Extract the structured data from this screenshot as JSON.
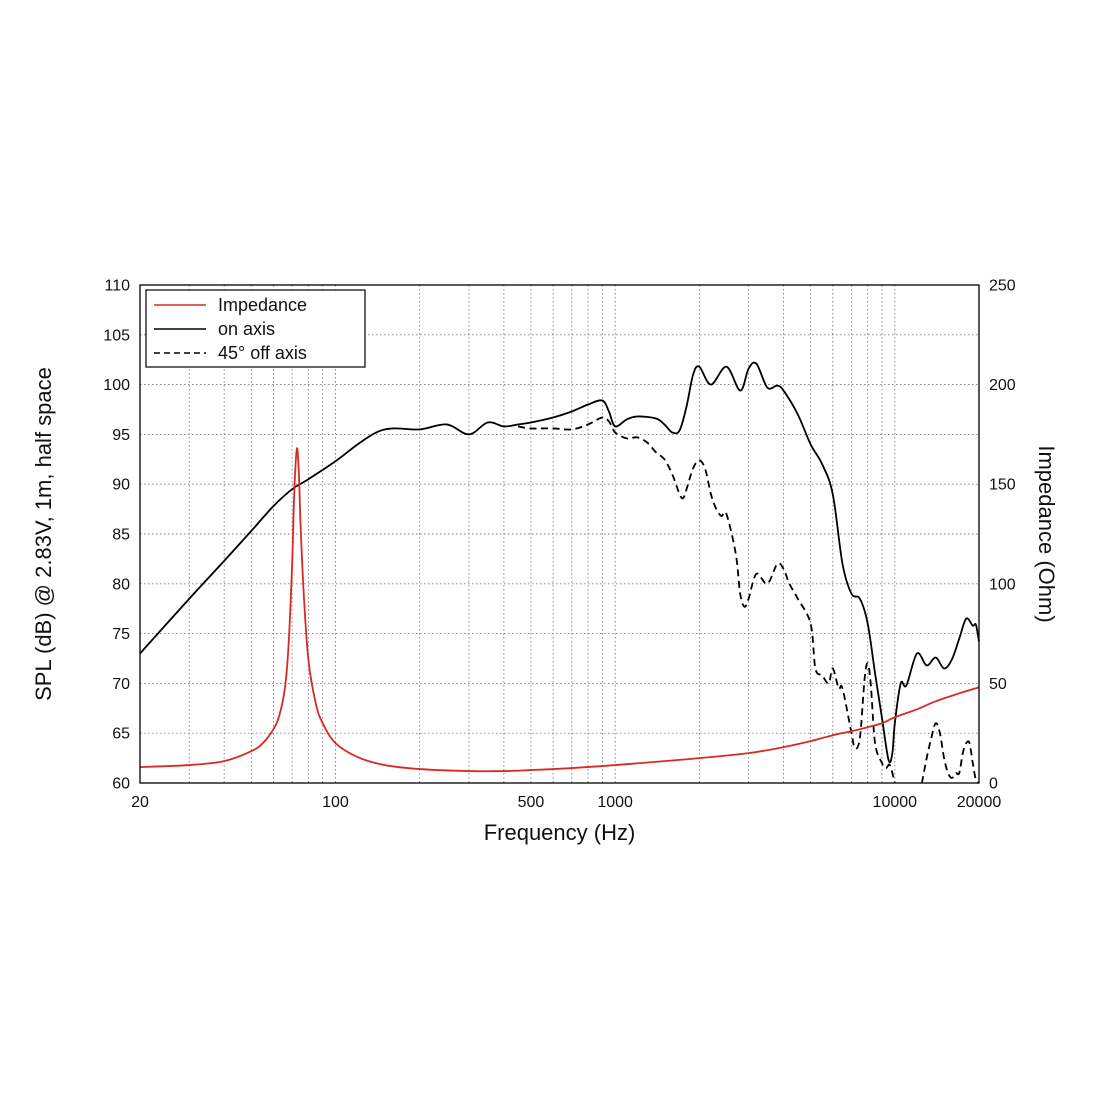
{
  "chart_data": {
    "type": "line",
    "xlabel": "Frequency (Hz)",
    "ylabel": "SPL (dB) @ 2.83V, 1m, half space",
    "y2label": "Impedance (Ohm)",
    "xscale": "log",
    "xlim": [
      20,
      20000
    ],
    "ylim": [
      60,
      110
    ],
    "y2lim": [
      0,
      250
    ],
    "grid": true,
    "legend_position": "top-left",
    "x_ticks": [
      20,
      100,
      500,
      1000,
      10000,
      20000
    ],
    "x_tick_labels": [
      "20",
      "100",
      "500",
      "1000",
      "10000",
      "20000"
    ],
    "y_ticks": [
      60,
      65,
      70,
      75,
      80,
      85,
      90,
      95,
      100,
      105,
      110
    ],
    "y_tick_labels": [
      "60",
      "65",
      "70",
      "75",
      "80",
      "85",
      "90",
      "95",
      "100",
      "105",
      "110"
    ],
    "y2_ticks": [
      0,
      50,
      100,
      150,
      200,
      250
    ],
    "y2_tick_labels": [
      "0",
      "50",
      "100",
      "150",
      "200",
      "250"
    ],
    "colors": {
      "impedance": "#d62b25",
      "on_axis": "#000000",
      "off_axis": "#000000"
    },
    "series": [
      {
        "name": "Impedance",
        "axis": "right",
        "color": "#d62b25",
        "dash": "solid",
        "points": [
          [
            20,
            8
          ],
          [
            30,
            9
          ],
          [
            40,
            11
          ],
          [
            50,
            16
          ],
          [
            55,
            20
          ],
          [
            60,
            27
          ],
          [
            63,
            34
          ],
          [
            66,
            48
          ],
          [
            68,
            70
          ],
          [
            70,
            110
          ],
          [
            71,
            140
          ],
          [
            72,
            160
          ],
          [
            73,
            168
          ],
          [
            74,
            155
          ],
          [
            75,
            130
          ],
          [
            77,
            95
          ],
          [
            80,
            62
          ],
          [
            85,
            40
          ],
          [
            90,
            30
          ],
          [
            100,
            20
          ],
          [
            120,
            13
          ],
          [
            150,
            9
          ],
          [
            200,
            7
          ],
          [
            300,
            6
          ],
          [
            400,
            6
          ],
          [
            500,
            6.5
          ],
          [
            700,
            7.5
          ],
          [
            1000,
            9
          ],
          [
            1500,
            11
          ],
          [
            2000,
            12.5
          ],
          [
            3000,
            15
          ],
          [
            4000,
            18
          ],
          [
            5000,
            21
          ],
          [
            6000,
            24
          ],
          [
            7000,
            26
          ],
          [
            8000,
            28
          ],
          [
            9000,
            30
          ],
          [
            10000,
            33
          ],
          [
            12000,
            37
          ],
          [
            14000,
            41
          ],
          [
            17000,
            45
          ],
          [
            20000,
            48
          ]
        ]
      },
      {
        "name": "on axis",
        "axis": "left",
        "color": "#000000",
        "dash": "solid",
        "points": [
          [
            20,
            73
          ],
          [
            30,
            78.5
          ],
          [
            40,
            82.3
          ],
          [
            50,
            85.3
          ],
          [
            60,
            87.8
          ],
          [
            70,
            89.5
          ],
          [
            80,
            90.5
          ],
          [
            100,
            92.3
          ],
          [
            120,
            94
          ],
          [
            140,
            95.2
          ],
          [
            160,
            95.6
          ],
          [
            200,
            95.5
          ],
          [
            250,
            96
          ],
          [
            300,
            95
          ],
          [
            350,
            96.2
          ],
          [
            400,
            95.8
          ],
          [
            450,
            96
          ],
          [
            500,
            96.2
          ],
          [
            600,
            96.7
          ],
          [
            700,
            97.3
          ],
          [
            800,
            98
          ],
          [
            900,
            98.4
          ],
          [
            950,
            97.3
          ],
          [
            1000,
            95.8
          ],
          [
            1100,
            96.5
          ],
          [
            1200,
            96.8
          ],
          [
            1400,
            96.6
          ],
          [
            1500,
            96
          ],
          [
            1600,
            95.2
          ],
          [
            1700,
            95.4
          ],
          [
            1800,
            97.8
          ],
          [
            1900,
            101
          ],
          [
            2000,
            101.8
          ],
          [
            2200,
            100
          ],
          [
            2500,
            101.8
          ],
          [
            2800,
            99.4
          ],
          [
            3000,
            101.6
          ],
          [
            3200,
            102.1
          ],
          [
            3500,
            99.7
          ],
          [
            3800,
            99.9
          ],
          [
            4000,
            99.4
          ],
          [
            4500,
            97
          ],
          [
            5000,
            94
          ],
          [
            5500,
            92
          ],
          [
            6000,
            89
          ],
          [
            6500,
            82
          ],
          [
            7000,
            79
          ],
          [
            7500,
            78.5
          ],
          [
            8000,
            76
          ],
          [
            8500,
            71
          ],
          [
            9000,
            66.5
          ],
          [
            9500,
            62.3
          ],
          [
            9800,
            63
          ],
          [
            10000,
            66
          ],
          [
            10500,
            70
          ],
          [
            11000,
            69.8
          ],
          [
            12000,
            73
          ],
          [
            13000,
            71.8
          ],
          [
            14000,
            72.6
          ],
          [
            15000,
            71.5
          ],
          [
            16000,
            72.4
          ],
          [
            17000,
            74.5
          ],
          [
            18000,
            76.5
          ],
          [
            19000,
            75.8
          ],
          [
            19500,
            75.9
          ],
          [
            20000,
            74.2
          ]
        ]
      },
      {
        "name": "45° off axis",
        "axis": "left",
        "color": "#000000",
        "dash": "dashed",
        "points": [
          [
            450,
            95.8
          ],
          [
            500,
            95.6
          ],
          [
            600,
            95.6
          ],
          [
            700,
            95.5
          ],
          [
            800,
            96
          ],
          [
            900,
            96.7
          ],
          [
            950,
            96.3
          ],
          [
            1000,
            95.2
          ],
          [
            1100,
            94.6
          ],
          [
            1200,
            94.7
          ],
          [
            1300,
            94.2
          ],
          [
            1400,
            93.2
          ],
          [
            1500,
            92.5
          ],
          [
            1600,
            91
          ],
          [
            1700,
            89
          ],
          [
            1750,
            88.6
          ],
          [
            1800,
            89.5
          ],
          [
            1900,
            91.6
          ],
          [
            2000,
            92.4
          ],
          [
            2100,
            91.5
          ],
          [
            2200,
            89
          ],
          [
            2300,
            87.5
          ],
          [
            2400,
            86.8
          ],
          [
            2500,
            87
          ],
          [
            2700,
            83
          ],
          [
            2800,
            79
          ],
          [
            2900,
            77.7
          ],
          [
            3000,
            78.5
          ],
          [
            3200,
            81
          ],
          [
            3500,
            80
          ],
          [
            3800,
            82
          ],
          [
            4000,
            81.5
          ],
          [
            4200,
            80
          ],
          [
            4500,
            78.5
          ],
          [
            5000,
            76
          ],
          [
            5200,
            71.5
          ],
          [
            5500,
            70.8
          ],
          [
            5800,
            70
          ],
          [
            6000,
            71.5
          ],
          [
            6300,
            69.5
          ],
          [
            6500,
            69.5
          ],
          [
            7000,
            65
          ],
          [
            7200,
            63.5
          ],
          [
            7500,
            64.5
          ],
          [
            7800,
            70.5
          ],
          [
            8000,
            72
          ],
          [
            8200,
            70
          ],
          [
            8500,
            64
          ],
          [
            9000,
            62
          ],
          [
            9300,
            61.5
          ],
          [
            9600,
            61.8
          ],
          [
            10000,
            60
          ]
        ]
      },
      {
        "name": "45° off axis (high segment)",
        "axis": "left",
        "color": "#000000",
        "dash": "dashed",
        "points": [
          [
            12500,
            60
          ],
          [
            13000,
            62.5
          ],
          [
            13500,
            64.5
          ],
          [
            14000,
            66
          ],
          [
            14500,
            65
          ],
          [
            15000,
            62.5
          ],
          [
            15500,
            61
          ],
          [
            16000,
            60.5
          ],
          [
            16500,
            61
          ],
          [
            17000,
            61
          ],
          [
            17500,
            63
          ],
          [
            18000,
            64
          ],
          [
            18500,
            64
          ],
          [
            19000,
            62
          ],
          [
            19500,
            60.3
          ],
          [
            20000,
            60
          ]
        ]
      }
    ]
  },
  "legend": {
    "items": [
      {
        "label": "Impedance",
        "color": "#d62b25",
        "dash": "solid"
      },
      {
        "label": "on axis",
        "color": "#000000",
        "dash": "solid"
      },
      {
        "label": "45° off axis",
        "color": "#000000",
        "dash": "dashed"
      }
    ]
  }
}
